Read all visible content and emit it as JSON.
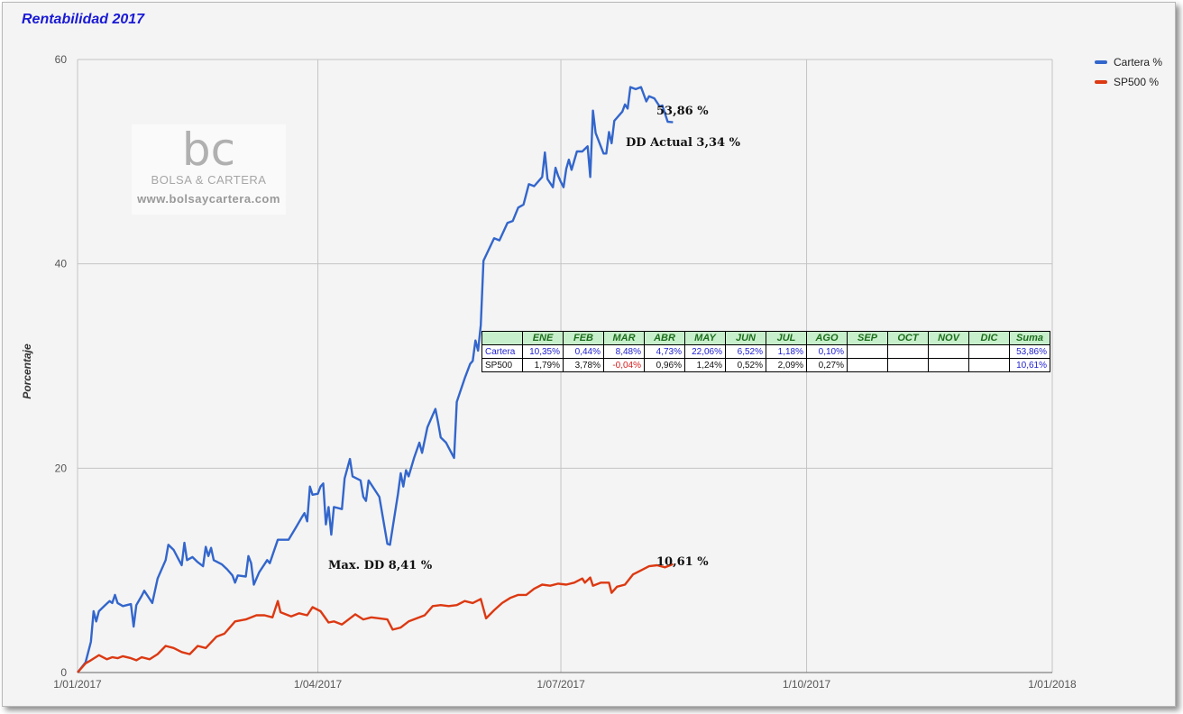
{
  "title": "Rentabilidad 2017",
  "chart_data": {
    "type": "line",
    "title": "Rentabilidad 2017",
    "xlabel": "",
    "ylabel": "Porcentaje",
    "x_ticks": [
      "1/01/2017",
      "1/04/2017",
      "1/07/2017",
      "1/10/2017",
      "1/01/2018"
    ],
    "y_ticks": [
      0,
      20,
      40,
      60
    ],
    "ylim": [
      0,
      60
    ],
    "xlim": [
      "2017-01-01",
      "2018-01-01"
    ],
    "grid": true,
    "legend_position": "right",
    "series": [
      {
        "name": "Cartera %",
        "color": "#3366cc",
        "points": [
          [
            "2017-01-01",
            0
          ],
          [
            "2017-01-04",
            1
          ],
          [
            "2017-01-06",
            3
          ],
          [
            "2017-01-07",
            6
          ],
          [
            "2017-01-08",
            5
          ],
          [
            "2017-01-09",
            6
          ],
          [
            "2017-01-11",
            6.5
          ],
          [
            "2017-01-13",
            7
          ],
          [
            "2017-01-14",
            6.8
          ],
          [
            "2017-01-15",
            7.6
          ],
          [
            "2017-01-16",
            6.8
          ],
          [
            "2017-01-18",
            6.5
          ],
          [
            "2017-01-21",
            6.7
          ],
          [
            "2017-01-22",
            4.5
          ],
          [
            "2017-01-23",
            6.6
          ],
          [
            "2017-01-25",
            7.5
          ],
          [
            "2017-01-26",
            8
          ],
          [
            "2017-01-29",
            6.8
          ],
          [
            "2017-01-31",
            9.2
          ],
          [
            "2017-02-03",
            11
          ],
          [
            "2017-02-04",
            12.5
          ],
          [
            "2017-02-06",
            12
          ],
          [
            "2017-02-08",
            11
          ],
          [
            "2017-02-09",
            10.5
          ],
          [
            "2017-02-10",
            12.7
          ],
          [
            "2017-02-11",
            11
          ],
          [
            "2017-02-13",
            11.3
          ],
          [
            "2017-02-15",
            10.8
          ],
          [
            "2017-02-17",
            10.4
          ],
          [
            "2017-02-18",
            12.3
          ],
          [
            "2017-02-19",
            11.4
          ],
          [
            "2017-02-20",
            12.2
          ],
          [
            "2017-02-21",
            11
          ],
          [
            "2017-02-24",
            10.6
          ],
          [
            "2017-02-26",
            10.1
          ],
          [
            "2017-02-28",
            9.5
          ],
          [
            "2017-03-01",
            8.8
          ],
          [
            "2017-03-02",
            9.5
          ],
          [
            "2017-03-05",
            9.4
          ],
          [
            "2017-03-06",
            11.4
          ],
          [
            "2017-03-07",
            10.7
          ],
          [
            "2017-03-08",
            8.6
          ],
          [
            "2017-03-10",
            9.8
          ],
          [
            "2017-03-13",
            11
          ],
          [
            "2017-03-14",
            10.7
          ],
          [
            "2017-03-17",
            13
          ],
          [
            "2017-03-21",
            13
          ],
          [
            "2017-03-24",
            14.3
          ],
          [
            "2017-03-26",
            15.2
          ],
          [
            "2017-03-27",
            15.6
          ],
          [
            "2017-03-28",
            14.8
          ],
          [
            "2017-03-29",
            18.2
          ],
          [
            "2017-03-30",
            17.4
          ],
          [
            "2017-04-01",
            17.5
          ],
          [
            "2017-04-02",
            18.2
          ],
          [
            "2017-04-03",
            18.5
          ],
          [
            "2017-04-04",
            14.5
          ],
          [
            "2017-04-05",
            16.2
          ],
          [
            "2017-04-06",
            13.5
          ],
          [
            "2017-04-07",
            16.2
          ],
          [
            "2017-04-10",
            16
          ],
          [
            "2017-04-11",
            19
          ],
          [
            "2017-04-13",
            20.9
          ],
          [
            "2017-04-14",
            19.2
          ],
          [
            "2017-04-17",
            18.8
          ],
          [
            "2017-04-18",
            17.2
          ],
          [
            "2017-04-19",
            16.8
          ],
          [
            "2017-04-20",
            18.8
          ],
          [
            "2017-04-24",
            17.2
          ],
          [
            "2017-04-27",
            12.6
          ],
          [
            "2017-04-28",
            12.5
          ],
          [
            "2017-05-01",
            17.5
          ],
          [
            "2017-05-02",
            19.5
          ],
          [
            "2017-05-03",
            18.2
          ],
          [
            "2017-05-04",
            19.8
          ],
          [
            "2017-05-05",
            19.2
          ],
          [
            "2017-05-07",
            21
          ],
          [
            "2017-05-09",
            22.5
          ],
          [
            "2017-05-10",
            21.5
          ],
          [
            "2017-05-12",
            24
          ],
          [
            "2017-05-14",
            25.2
          ],
          [
            "2017-05-15",
            25.8
          ],
          [
            "2017-05-16",
            24.5
          ],
          [
            "2017-05-17",
            23
          ],
          [
            "2017-05-19",
            22.5
          ],
          [
            "2017-05-21",
            21.5
          ],
          [
            "2017-05-22",
            21
          ],
          [
            "2017-05-23",
            26.5
          ],
          [
            "2017-05-26",
            28.8
          ],
          [
            "2017-05-28",
            30.2
          ],
          [
            "2017-05-29",
            30.5
          ],
          [
            "2017-05-30",
            32.5
          ],
          [
            "2017-05-31",
            31.5
          ],
          [
            "2017-06-01",
            34
          ],
          [
            "2017-06-02",
            40.3
          ],
          [
            "2017-06-06",
            42.5
          ],
          [
            "2017-06-08",
            42.3
          ],
          [
            "2017-06-11",
            44
          ],
          [
            "2017-06-13",
            44.2
          ],
          [
            "2017-06-15",
            45.5
          ],
          [
            "2017-06-17",
            45.8
          ],
          [
            "2017-06-19",
            47.8
          ],
          [
            "2017-06-21",
            47.6
          ],
          [
            "2017-06-24",
            48.5
          ],
          [
            "2017-06-25",
            50.9
          ],
          [
            "2017-06-26",
            48.3
          ],
          [
            "2017-06-28",
            47.5
          ],
          [
            "2017-06-29",
            49.4
          ],
          [
            "2017-06-30",
            48.6
          ],
          [
            "2017-07-01",
            48
          ],
          [
            "2017-07-02",
            47.5
          ],
          [
            "2017-07-03",
            49.3
          ],
          [
            "2017-07-04",
            50.2
          ],
          [
            "2017-07-05",
            49.2
          ],
          [
            "2017-07-07",
            51
          ],
          [
            "2017-07-09",
            51
          ],
          [
            "2017-07-11",
            51.5
          ],
          [
            "2017-07-12",
            48.5
          ],
          [
            "2017-07-13",
            55
          ],
          [
            "2017-07-14",
            52.8
          ],
          [
            "2017-07-17",
            50.8
          ],
          [
            "2017-07-18",
            50.8
          ],
          [
            "2017-07-19",
            52.9
          ],
          [
            "2017-07-20",
            51.8
          ],
          [
            "2017-07-21",
            54
          ],
          [
            "2017-07-24",
            54.9
          ],
          [
            "2017-07-25",
            55.6
          ],
          [
            "2017-07-26",
            55.2
          ],
          [
            "2017-07-27",
            57.3
          ],
          [
            "2017-07-29",
            57.1
          ],
          [
            "2017-07-31",
            57.3
          ],
          [
            "2017-08-02",
            55.9
          ],
          [
            "2017-08-03",
            56.4
          ],
          [
            "2017-08-05",
            56.2
          ],
          [
            "2017-08-07",
            55.4
          ],
          [
            "2017-08-08",
            55.5
          ],
          [
            "2017-08-10",
            53.9
          ],
          [
            "2017-08-12",
            53.86
          ]
        ]
      },
      {
        "name": "SP500 %",
        "color": "#dc3912",
        "points": [
          [
            "2017-01-01",
            0
          ],
          [
            "2017-01-04",
            0.9
          ],
          [
            "2017-01-06",
            1.2
          ],
          [
            "2017-01-09",
            1.7
          ],
          [
            "2017-01-12",
            1.3
          ],
          [
            "2017-01-14",
            1.5
          ],
          [
            "2017-01-16",
            1.4
          ],
          [
            "2017-01-18",
            1.6
          ],
          [
            "2017-01-21",
            1.4
          ],
          [
            "2017-01-23",
            1.2
          ],
          [
            "2017-01-25",
            1.5
          ],
          [
            "2017-01-28",
            1.3
          ],
          [
            "2017-01-31",
            1.8
          ],
          [
            "2017-02-03",
            2.6
          ],
          [
            "2017-02-06",
            2.4
          ],
          [
            "2017-02-09",
            2.0
          ],
          [
            "2017-02-12",
            1.8
          ],
          [
            "2017-02-15",
            2.6
          ],
          [
            "2017-02-18",
            2.4
          ],
          [
            "2017-02-22",
            3.5
          ],
          [
            "2017-02-25",
            3.8
          ],
          [
            "2017-03-01",
            5.0
          ],
          [
            "2017-03-05",
            5.2
          ],
          [
            "2017-03-09",
            5.6
          ],
          [
            "2017-03-12",
            5.6
          ],
          [
            "2017-03-15",
            5.4
          ],
          [
            "2017-03-17",
            7.0
          ],
          [
            "2017-03-18",
            5.9
          ],
          [
            "2017-03-22",
            5.5
          ],
          [
            "2017-03-25",
            5.8
          ],
          [
            "2017-03-28",
            5.6
          ],
          [
            "2017-03-30",
            6.4
          ],
          [
            "2017-04-02",
            6.0
          ],
          [
            "2017-04-05",
            4.9
          ],
          [
            "2017-04-07",
            5.0
          ],
          [
            "2017-04-10",
            4.7
          ],
          [
            "2017-04-13",
            5.3
          ],
          [
            "2017-04-15",
            5.7
          ],
          [
            "2017-04-18",
            5.2
          ],
          [
            "2017-04-21",
            5.4
          ],
          [
            "2017-04-24",
            5.3
          ],
          [
            "2017-04-27",
            5.2
          ],
          [
            "2017-04-29",
            4.2
          ],
          [
            "2017-05-02",
            4.4
          ],
          [
            "2017-05-05",
            5.0
          ],
          [
            "2017-05-08",
            5.3
          ],
          [
            "2017-05-11",
            5.6
          ],
          [
            "2017-05-14",
            6.5
          ],
          [
            "2017-05-17",
            6.6
          ],
          [
            "2017-05-20",
            6.5
          ],
          [
            "2017-05-23",
            6.6
          ],
          [
            "2017-05-26",
            7.0
          ],
          [
            "2017-05-29",
            6.8
          ],
          [
            "2017-06-01",
            7.2
          ],
          [
            "2017-06-03",
            5.3
          ],
          [
            "2017-06-06",
            6.1
          ],
          [
            "2017-06-09",
            6.8
          ],
          [
            "2017-06-12",
            7.3
          ],
          [
            "2017-06-15",
            7.6
          ],
          [
            "2017-06-18",
            7.6
          ],
          [
            "2017-06-21",
            8.2
          ],
          [
            "2017-06-24",
            8.6
          ],
          [
            "2017-06-27",
            8.5
          ],
          [
            "2017-06-30",
            8.7
          ],
          [
            "2017-07-03",
            8.6
          ],
          [
            "2017-07-06",
            8.8
          ],
          [
            "2017-07-09",
            9.2
          ],
          [
            "2017-07-10",
            8.8
          ],
          [
            "2017-07-12",
            9.3
          ],
          [
            "2017-07-13",
            8.5
          ],
          [
            "2017-07-16",
            8.8
          ],
          [
            "2017-07-19",
            8.8
          ],
          [
            "2017-07-20",
            7.8
          ],
          [
            "2017-07-22",
            8.4
          ],
          [
            "2017-07-25",
            8.6
          ],
          [
            "2017-07-28",
            9.6
          ],
          [
            "2017-07-31",
            10.0
          ],
          [
            "2017-08-03",
            10.4
          ],
          [
            "2017-08-06",
            10.5
          ],
          [
            "2017-08-09",
            10.3
          ],
          [
            "2017-08-12",
            10.61
          ]
        ]
      }
    ],
    "annotations": [
      "53,86 %",
      "DD Actual 3,34 %",
      "Max. DD 8,41 %",
      "10,61 %"
    ]
  },
  "legend": [
    {
      "label": "Cartera %",
      "color": "#3366cc"
    },
    {
      "label": "SP500 %",
      "color": "#dc3912"
    }
  ],
  "annotations": {
    "cartera_final": "53,86 %",
    "dd_actual": "DD Actual 3,34 %",
    "max_dd": "Max. DD 8,41 %",
    "sp500_final": "10,61 %"
  },
  "watermark": {
    "logo": "bc",
    "name": "BOLSA & CARTERA",
    "url": "www.bolsaycartera.com"
  },
  "monthly_table": {
    "headers": [
      "",
      "ENE",
      "FEB",
      "MAR",
      "ABR",
      "MAY",
      "JUN",
      "JUL",
      "AGO",
      "SEP",
      "OCT",
      "NOV",
      "DIC",
      "Suma"
    ],
    "rows": [
      {
        "label": "Cartera",
        "values": [
          "10,35%",
          "0,44%",
          "8,48%",
          "4,73%",
          "22,06%",
          "6,52%",
          "1,18%",
          "0,10%",
          "",
          "",
          "",
          "",
          "53,86%"
        ]
      },
      {
        "label": "SP500",
        "values": [
          "1,79%",
          "3,78%",
          "-0,04%",
          "0,96%",
          "1,24%",
          "0,52%",
          "2,09%",
          "0,27%",
          "",
          "",
          "",
          "",
          "10,61%"
        ]
      }
    ]
  }
}
